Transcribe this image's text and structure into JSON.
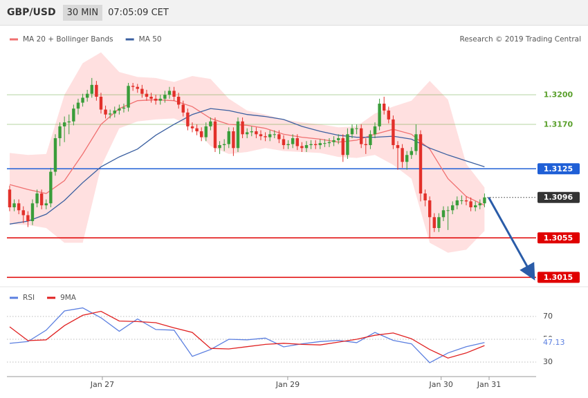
{
  "header": {
    "pair": "GBP/USD",
    "timeframe": "30 MIN",
    "time": "07:05:09 CET"
  },
  "chart_data": [
    {
      "type": "candlestick",
      "credit": "Research © 2019 Trading Central",
      "legend": "top-left",
      "up_color": "#3a9d3a",
      "down_color": "#e2302a",
      "xlim": [
        -0.6,
        115.3
      ],
      "ylim": [
        1.3009,
        1.3268
      ],
      "open": [
        1.3104,
        1.3086,
        1.309,
        1.3083,
        1.3078,
        1.3072,
        1.309,
        1.31,
        1.3088,
        1.309,
        1.3122,
        1.3156,
        1.3168,
        1.3172,
        1.3173,
        1.3186,
        1.3192,
        1.3197,
        1.3201,
        1.321,
        1.3198,
        1.3185,
        1.318,
        1.3181,
        1.3184,
        1.3186,
        1.3187,
        1.3209,
        1.3208,
        1.3206,
        1.3201,
        1.3198,
        1.3196,
        1.3194,
        1.3196,
        1.32,
        1.3204,
        1.3198,
        1.319,
        1.3182,
        1.3168,
        1.3166,
        1.3163,
        1.3157,
        1.3168,
        1.3173,
        1.3146,
        1.3149,
        1.315,
        1.3163,
        1.3146,
        1.3173,
        1.316,
        1.3162,
        1.3163,
        1.316,
        1.3158,
        1.3157,
        1.316,
        1.316,
        1.3155,
        1.3149,
        1.315,
        1.3156,
        1.3148,
        1.3146,
        1.3149,
        1.315,
        1.3149,
        1.3151,
        1.3151,
        1.3152,
        1.3154,
        1.3156,
        1.3139,
        1.316,
        1.3166,
        1.3166,
        1.315,
        1.3149,
        1.316,
        1.3168,
        1.3191,
        1.3184,
        1.3175,
        1.3149,
        1.3146,
        1.3132,
        1.3139,
        1.3143,
        1.316,
        1.31,
        1.3093,
        1.3076,
        1.3065,
        1.3076,
        1.3083,
        1.3083,
        1.3088,
        1.3093,
        1.3093,
        1.3092,
        1.3086,
        1.3088,
        1.309
      ],
      "high": [
        1.3108,
        1.3094,
        1.3094,
        1.3087,
        1.3082,
        1.3094,
        1.3104,
        1.3104,
        1.3094,
        1.3126,
        1.316,
        1.3172,
        1.3178,
        1.318,
        1.319,
        1.3196,
        1.3201,
        1.3205,
        1.3217,
        1.3214,
        1.3202,
        1.3189,
        1.3185,
        1.3188,
        1.319,
        1.3191,
        1.3212,
        1.3212,
        1.3211,
        1.321,
        1.3205,
        1.3202,
        1.32,
        1.32,
        1.3204,
        1.3208,
        1.3208,
        1.3202,
        1.3194,
        1.3186,
        1.3172,
        1.317,
        1.3167,
        1.3172,
        1.3177,
        1.3177,
        1.3153,
        1.3155,
        1.3167,
        1.3167,
        1.3177,
        1.3177,
        1.3166,
        1.3168,
        1.3167,
        1.3164,
        1.3162,
        1.3164,
        1.3164,
        1.3164,
        1.3159,
        1.3154,
        1.316,
        1.316,
        1.3152,
        1.3153,
        1.3154,
        1.3154,
        1.3155,
        1.3155,
        1.3156,
        1.3158,
        1.316,
        1.316,
        1.3166,
        1.317,
        1.317,
        1.317,
        1.3156,
        1.3164,
        1.3172,
        1.3196,
        1.3198,
        1.3188,
        1.3179,
        1.3153,
        1.315,
        1.3143,
        1.3147,
        1.317,
        1.3164,
        1.3104,
        1.3097,
        1.308,
        1.308,
        1.3087,
        1.3087,
        1.3092,
        1.3097,
        1.3098,
        1.3097,
        1.3096,
        1.3092,
        1.3094,
        1.31
      ],
      "low": [
        1.3082,
        1.3082,
        1.3079,
        1.307,
        1.3066,
        1.3068,
        1.3086,
        1.3084,
        1.3084,
        1.3086,
        1.3118,
        1.3148,
        1.3152,
        1.316,
        1.3169,
        1.318,
        1.3188,
        1.3193,
        1.3197,
        1.3194,
        1.3181,
        1.3176,
        1.3176,
        1.3177,
        1.318,
        1.3182,
        1.3183,
        1.3204,
        1.3202,
        1.3197,
        1.3194,
        1.3192,
        1.319,
        1.319,
        1.3192,
        1.3196,
        1.3194,
        1.3186,
        1.3178,
        1.3164,
        1.3162,
        1.3159,
        1.3153,
        1.3153,
        1.3164,
        1.3142,
        1.314,
        1.3143,
        1.3146,
        1.3138,
        1.3142,
        1.3156,
        1.3156,
        1.3158,
        1.3156,
        1.3154,
        1.3153,
        1.3153,
        1.3156,
        1.3151,
        1.3145,
        1.3145,
        1.3146,
        1.3144,
        1.3142,
        1.3142,
        1.3145,
        1.3145,
        1.3145,
        1.3147,
        1.3147,
        1.3148,
        1.315,
        1.3132,
        1.3135,
        1.3156,
        1.316,
        1.3146,
        1.314,
        1.3145,
        1.3156,
        1.3164,
        1.318,
        1.3171,
        1.3145,
        1.3124,
        1.3126,
        1.3124,
        1.3135,
        1.3139,
        1.3092,
        1.3087,
        1.3055,
        1.3061,
        1.3061,
        1.3072,
        1.3063,
        1.3079,
        1.3084,
        1.3089,
        1.3088,
        1.3082,
        1.3082,
        1.3084,
        1.3086
      ],
      "close": [
        1.3086,
        1.309,
        1.3083,
        1.3078,
        1.3072,
        1.309,
        1.31,
        1.3088,
        1.309,
        1.3122,
        1.3156,
        1.3168,
        1.3172,
        1.3173,
        1.3186,
        1.3192,
        1.3197,
        1.3201,
        1.321,
        1.3198,
        1.3185,
        1.318,
        1.3181,
        1.3184,
        1.3186,
        1.3187,
        1.3209,
        1.3208,
        1.3206,
        1.3201,
        1.3198,
        1.3196,
        1.3194,
        1.3196,
        1.32,
        1.3204,
        1.3198,
        1.319,
        1.3182,
        1.3168,
        1.3166,
        1.3163,
        1.3157,
        1.3168,
        1.3173,
        1.3146,
        1.3149,
        1.315,
        1.3163,
        1.3146,
        1.3173,
        1.316,
        1.3162,
        1.3163,
        1.316,
        1.3158,
        1.3157,
        1.316,
        1.316,
        1.3155,
        1.3149,
        1.315,
        1.3156,
        1.3148,
        1.3146,
        1.3149,
        1.315,
        1.3149,
        1.3151,
        1.3151,
        1.3152,
        1.3154,
        1.3156,
        1.3139,
        1.316,
        1.3166,
        1.3166,
        1.315,
        1.3149,
        1.316,
        1.3168,
        1.3191,
        1.3184,
        1.3175,
        1.3149,
        1.3146,
        1.3132,
        1.3139,
        1.3143,
        1.316,
        1.31,
        1.3093,
        1.3076,
        1.3065,
        1.3076,
        1.3083,
        1.3083,
        1.3088,
        1.3093,
        1.3093,
        1.3092,
        1.3086,
        1.3088,
        1.309,
        1.3096
      ],
      "series": [
        {
          "name": "MA 20 + Bollinger Bands",
          "color": "#f07070",
          "band_color": "#ffd6d6",
          "x": [
            0,
            4,
            8,
            12,
            16,
            20,
            24,
            28,
            32,
            36,
            40,
            44,
            48,
            52,
            56,
            60,
            64,
            68,
            72,
            76,
            80,
            84,
            88,
            92,
            96,
            100,
            104
          ],
          "values": [
            1.3109,
            1.3104,
            1.31,
            1.3113,
            1.314,
            1.317,
            1.3186,
            1.3194,
            1.3195,
            1.3194,
            1.3188,
            1.3176,
            1.317,
            1.3169,
            1.3166,
            1.316,
            1.3157,
            1.3155,
            1.3152,
            1.3154,
            1.316,
            1.3165,
            1.316,
            1.3145,
            1.3115,
            1.3097,
            1.3088
          ],
          "upper": [
            1.3141,
            1.3139,
            1.314,
            1.32,
            1.3232,
            1.3243,
            1.3223,
            1.3218,
            1.3217,
            1.3213,
            1.3219,
            1.3216,
            1.3196,
            1.3184,
            1.318,
            1.3175,
            1.3172,
            1.317,
            1.3167,
            1.3168,
            1.3181,
            1.3188,
            1.3194,
            1.3214,
            1.3195,
            1.313,
            1.3106
          ],
          "lower": [
            1.3069,
            1.3068,
            1.3065,
            1.305,
            1.305,
            1.3127,
            1.3166,
            1.3173,
            1.3175,
            1.3176,
            1.3168,
            1.3148,
            1.314,
            1.3142,
            1.3146,
            1.3143,
            1.3142,
            1.3141,
            1.3137,
            1.3136,
            1.3139,
            1.3129,
            1.3115,
            1.305,
            1.304,
            1.3043,
            1.3062
          ]
        },
        {
          "name": "MA 50",
          "color": "#3a5fa0",
          "x": [
            0,
            4,
            8,
            12,
            16,
            20,
            24,
            28,
            32,
            36,
            40,
            44,
            48,
            52,
            56,
            60,
            64,
            68,
            72,
            76,
            80,
            84,
            88,
            92,
            96,
            100,
            104
          ],
          "values": [
            1.3069,
            1.3072,
            1.3079,
            1.3093,
            1.3111,
            1.3127,
            1.3137,
            1.3145,
            1.3159,
            1.317,
            1.318,
            1.3186,
            1.3184,
            1.318,
            1.3178,
            1.3175,
            1.3168,
            1.3163,
            1.3159,
            1.3157,
            1.3157,
            1.3158,
            1.3155,
            1.3146,
            1.3139,
            1.3133,
            1.3127
          ]
        }
      ],
      "levels": [
        {
          "value": 1.32,
          "label": "1.3200",
          "color": "#5aa02c",
          "filled": false,
          "line": "solid"
        },
        {
          "value": 1.317,
          "label": "1.3170",
          "color": "#5aa02c",
          "filled": false,
          "line": "solid"
        },
        {
          "value": 1.3125,
          "label": "1.3125",
          "color": "#1f5fd6",
          "filled": true,
          "line": "solid"
        },
        {
          "value": 1.3096,
          "label": "1.3096",
          "color": "#333333",
          "filled": true,
          "line": "dotted"
        },
        {
          "value": 1.3055,
          "label": "1.3055",
          "color": "#e00000",
          "filled": true,
          "line": "solid"
        },
        {
          "value": 1.3015,
          "label": "1.3015",
          "color": "#e00000",
          "filled": true,
          "line": "solid"
        }
      ]
    },
    {
      "type": "line",
      "legend": "top-left",
      "xlim": [
        -0.6,
        115.3
      ],
      "ylim": [
        20.3,
        93
      ],
      "yticks": [
        70,
        50,
        30
      ],
      "xticks": [
        {
          "value": 20.3,
          "label": "Jan 27"
        },
        {
          "value": 60.9,
          "label": "Jan 29"
        },
        {
          "value": 94.5,
          "label": "Jan 30"
        },
        {
          "value": 105,
          "label": "Jan 31"
        }
      ],
      "current": {
        "value": 47.13,
        "label": "47.13",
        "color": "#5b7fe0"
      },
      "series": [
        {
          "name": "RSI",
          "color": "#5b7fe0",
          "x": [
            0,
            4,
            8,
            12,
            16,
            20,
            24,
            28,
            32,
            36,
            40,
            44,
            48,
            52,
            56,
            60,
            64,
            68,
            72,
            76,
            80,
            84,
            88,
            92,
            96,
            100,
            104
          ],
          "values": [
            46.4,
            48,
            58,
            74.8,
            77.5,
            68.8,
            57,
            67.8,
            58.5,
            58,
            35,
            41,
            50,
            49.5,
            51,
            43.3,
            46,
            48,
            49,
            47,
            56,
            49,
            46,
            29.4,
            38,
            43.5,
            47.13
          ]
        },
        {
          "name": "9MA",
          "color": "#e02020",
          "x": [
            0,
            4,
            8,
            12,
            16,
            20,
            24,
            28,
            32,
            36,
            40,
            44,
            48,
            52,
            56,
            60,
            64,
            68,
            72,
            76,
            80,
            84,
            88,
            92,
            96,
            100,
            104
          ],
          "values": [
            60.9,
            48.8,
            49.5,
            62,
            71,
            74.5,
            66,
            65.5,
            64.5,
            60,
            56,
            42,
            41.5,
            43.5,
            45.5,
            46.5,
            45.5,
            45,
            47.5,
            50,
            53.5,
            55.5,
            50.5,
            41,
            33.5,
            38,
            44.5
          ]
        }
      ]
    }
  ]
}
